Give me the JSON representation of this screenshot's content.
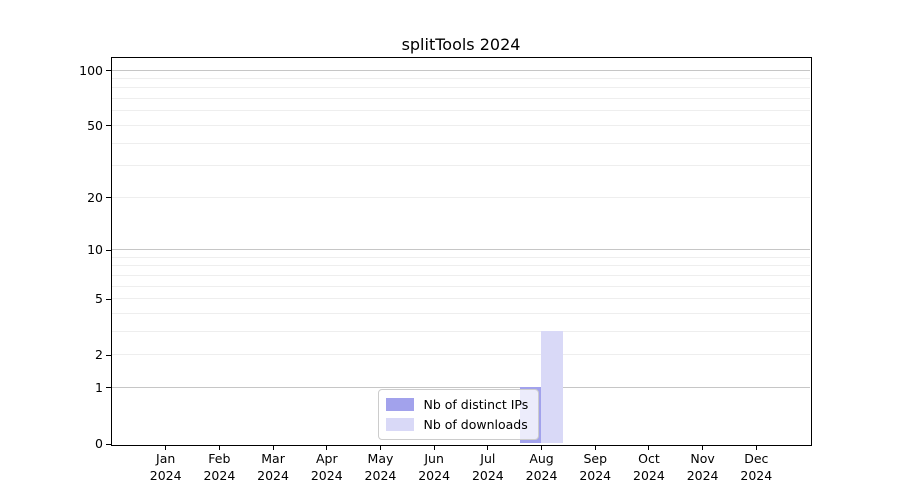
{
  "chart_data": {
    "type": "bar",
    "title": "splitTools 2024",
    "categories": [
      "Jan 2024",
      "Feb 2024",
      "Mar 2024",
      "Apr 2024",
      "May 2024",
      "Jun 2024",
      "Jul 2024",
      "Aug 2024",
      "Sep 2024",
      "Oct 2024",
      "Nov 2024",
      "Dec 2024"
    ],
    "series": [
      {
        "name": "Nb of distinct IPs",
        "color": "#a2a2ec",
        "values": [
          0,
          0,
          0,
          0,
          0,
          0,
          0,
          1,
          0,
          0,
          0,
          0
        ]
      },
      {
        "name": "Nb of downloads",
        "color": "#d9d9f7",
        "values": [
          0,
          0,
          0,
          0,
          0,
          0,
          0,
          3,
          0,
          0,
          0,
          0
        ]
      }
    ],
    "yscale": "log1p",
    "ylim": [
      0,
      117
    ],
    "yticks": [
      0,
      1,
      2,
      5,
      10,
      20,
      50,
      100
    ],
    "grid": {
      "major": [
        1,
        10,
        100
      ],
      "minor": [
        2,
        3,
        4,
        5,
        6,
        7,
        8,
        9,
        20,
        30,
        40,
        50,
        60,
        70,
        80,
        90
      ]
    },
    "legend": {
      "position": "lower center"
    },
    "colors": {
      "grid_major": "#c6c6c6",
      "grid_minor": "#eeeeee",
      "spine": "#000000",
      "text": "#000000"
    }
  }
}
